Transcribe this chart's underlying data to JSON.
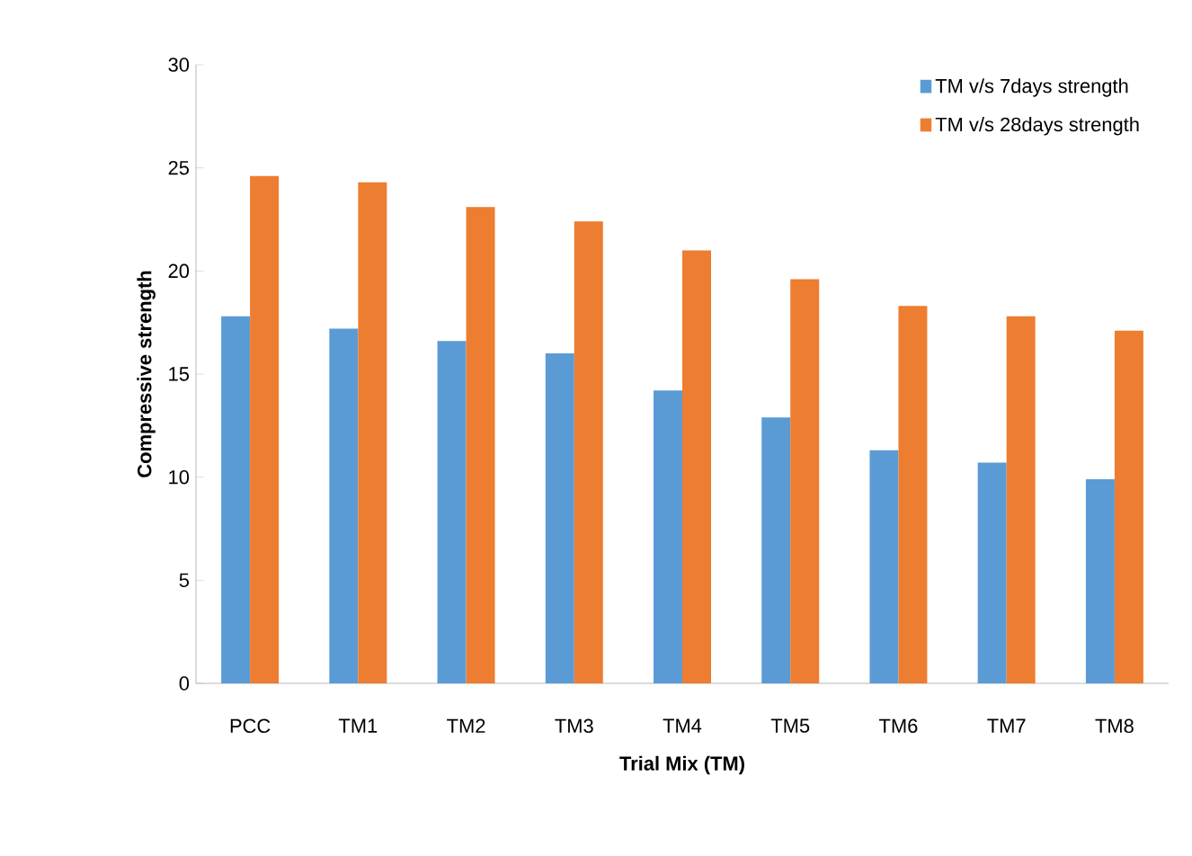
{
  "chart_data": {
    "type": "bar",
    "xlabel": "Trial Mix  (TM)",
    "ylabel": "Compressive strength",
    "categories": [
      "PCC",
      "TM1",
      "TM2",
      "TM3",
      "TM4",
      "TM5",
      "TM6",
      "TM7",
      "TM8"
    ],
    "series": [
      {
        "name": "TM v/s 7days strength",
        "color": "#5b9bd5",
        "values": [
          17.8,
          17.2,
          16.6,
          16.0,
          14.2,
          12.9,
          11.3,
          10.7,
          9.9
        ]
      },
      {
        "name": "TM v/s 28days strength",
        "color": "#ed7d31",
        "values": [
          24.6,
          24.3,
          23.1,
          22.4,
          21.0,
          19.6,
          18.3,
          17.8,
          17.1
        ]
      }
    ],
    "ylim": [
      0,
      30
    ],
    "yticks": [
      0,
      5,
      10,
      15,
      20,
      25,
      30
    ],
    "grid": false,
    "legend": "top right"
  }
}
